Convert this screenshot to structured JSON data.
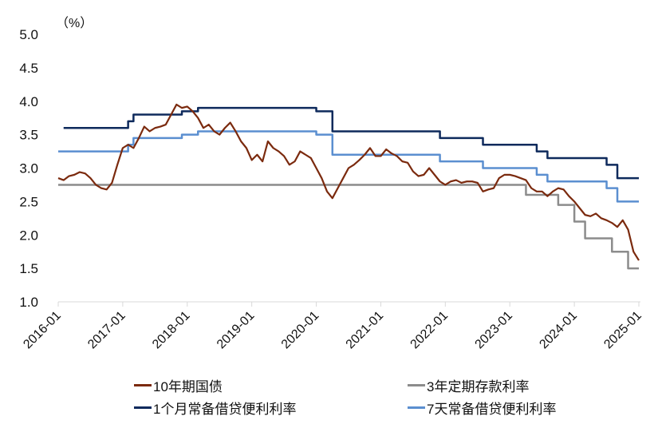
{
  "chart_data": {
    "type": "line",
    "title": "",
    "unit_label": "（%）",
    "xlabel": "",
    "ylabel": "%",
    "ylim": [
      1.0,
      5.0
    ],
    "yticks": [
      "1.0",
      "1.5",
      "2.0",
      "2.5",
      "3.0",
      "3.5",
      "4.0",
      "4.5",
      "5.0"
    ],
    "xticks": [
      "2016-01",
      "2017-01",
      "2018-01",
      "2019-01",
      "2020-01",
      "2021-01",
      "2022-01",
      "2023-01",
      "2024-01",
      "2025-01"
    ],
    "grid": false,
    "legend_position": "bottom",
    "series": [
      {
        "name": "10年期国债",
        "color": "#7B2A0E",
        "style": "line",
        "points": [
          [
            "2016-01",
            2.85
          ],
          [
            "2016-02",
            2.82
          ],
          [
            "2016-03",
            2.88
          ],
          [
            "2016-04",
            2.9
          ],
          [
            "2016-05",
            2.94
          ],
          [
            "2016-06",
            2.92
          ],
          [
            "2016-07",
            2.85
          ],
          [
            "2016-08",
            2.75
          ],
          [
            "2016-09",
            2.7
          ],
          [
            "2016-10",
            2.68
          ],
          [
            "2016-11",
            2.78
          ],
          [
            "2016-12",
            3.05
          ],
          [
            "2017-01",
            3.3
          ],
          [
            "2017-02",
            3.35
          ],
          [
            "2017-03",
            3.3
          ],
          [
            "2017-04",
            3.45
          ],
          [
            "2017-05",
            3.62
          ],
          [
            "2017-06",
            3.55
          ],
          [
            "2017-07",
            3.6
          ],
          [
            "2017-08",
            3.62
          ],
          [
            "2017-09",
            3.65
          ],
          [
            "2017-10",
            3.8
          ],
          [
            "2017-11",
            3.95
          ],
          [
            "2017-12",
            3.9
          ],
          [
            "2018-01",
            3.92
          ],
          [
            "2018-02",
            3.85
          ],
          [
            "2018-03",
            3.75
          ],
          [
            "2018-04",
            3.6
          ],
          [
            "2018-05",
            3.65
          ],
          [
            "2018-06",
            3.55
          ],
          [
            "2018-07",
            3.5
          ],
          [
            "2018-08",
            3.6
          ],
          [
            "2018-09",
            3.68
          ],
          [
            "2018-10",
            3.55
          ],
          [
            "2018-11",
            3.4
          ],
          [
            "2018-12",
            3.3
          ],
          [
            "2019-01",
            3.12
          ],
          [
            "2019-02",
            3.2
          ],
          [
            "2019-03",
            3.1
          ],
          [
            "2019-04",
            3.4
          ],
          [
            "2019-05",
            3.3
          ],
          [
            "2019-06",
            3.25
          ],
          [
            "2019-07",
            3.18
          ],
          [
            "2019-08",
            3.05
          ],
          [
            "2019-09",
            3.1
          ],
          [
            "2019-10",
            3.25
          ],
          [
            "2019-11",
            3.2
          ],
          [
            "2019-12",
            3.15
          ],
          [
            "2020-01",
            3.0
          ],
          [
            "2020-02",
            2.85
          ],
          [
            "2020-03",
            2.65
          ],
          [
            "2020-04",
            2.55
          ],
          [
            "2020-05",
            2.7
          ],
          [
            "2020-06",
            2.85
          ],
          [
            "2020-07",
            3.0
          ],
          [
            "2020-08",
            3.05
          ],
          [
            "2020-09",
            3.12
          ],
          [
            "2020-10",
            3.2
          ],
          [
            "2020-11",
            3.3
          ],
          [
            "2020-12",
            3.18
          ],
          [
            "2021-01",
            3.18
          ],
          [
            "2021-02",
            3.28
          ],
          [
            "2021-03",
            3.22
          ],
          [
            "2021-04",
            3.18
          ],
          [
            "2021-05",
            3.1
          ],
          [
            "2021-06",
            3.08
          ],
          [
            "2021-07",
            2.95
          ],
          [
            "2021-08",
            2.88
          ],
          [
            "2021-09",
            2.9
          ],
          [
            "2021-10",
            3.0
          ],
          [
            "2021-11",
            2.9
          ],
          [
            "2021-12",
            2.8
          ],
          [
            "2022-01",
            2.75
          ],
          [
            "2022-02",
            2.8
          ],
          [
            "2022-03",
            2.82
          ],
          [
            "2022-04",
            2.78
          ],
          [
            "2022-05",
            2.8
          ],
          [
            "2022-06",
            2.8
          ],
          [
            "2022-07",
            2.78
          ],
          [
            "2022-08",
            2.65
          ],
          [
            "2022-09",
            2.68
          ],
          [
            "2022-10",
            2.7
          ],
          [
            "2022-11",
            2.85
          ],
          [
            "2022-12",
            2.9
          ],
          [
            "2023-01",
            2.9
          ],
          [
            "2023-02",
            2.88
          ],
          [
            "2023-03",
            2.85
          ],
          [
            "2023-04",
            2.82
          ],
          [
            "2023-05",
            2.7
          ],
          [
            "2023-06",
            2.65
          ],
          [
            "2023-07",
            2.65
          ],
          [
            "2023-08",
            2.58
          ],
          [
            "2023-09",
            2.65
          ],
          [
            "2023-10",
            2.7
          ],
          [
            "2023-11",
            2.68
          ],
          [
            "2023-12",
            2.58
          ],
          [
            "2024-01",
            2.5
          ],
          [
            "2024-02",
            2.4
          ],
          [
            "2024-03",
            2.3
          ],
          [
            "2024-04",
            2.28
          ],
          [
            "2024-05",
            2.32
          ],
          [
            "2024-06",
            2.25
          ],
          [
            "2024-07",
            2.22
          ],
          [
            "2024-08",
            2.18
          ],
          [
            "2024-09",
            2.12
          ],
          [
            "2024-10",
            2.22
          ],
          [
            "2024-11",
            2.08
          ],
          [
            "2024-12",
            1.75
          ],
          [
            "2025-01",
            1.62
          ]
        ]
      },
      {
        "name": "3年定期存款利率",
        "color": "#8C8C8C",
        "style": "step",
        "points": [
          [
            "2016-01",
            2.75
          ],
          [
            "2023-04",
            2.6
          ],
          [
            "2023-10",
            2.45
          ],
          [
            "2024-01",
            2.2
          ],
          [
            "2024-03",
            1.95
          ],
          [
            "2024-08",
            1.75
          ],
          [
            "2024-11",
            1.5
          ],
          [
            "2025-01",
            1.5
          ]
        ]
      },
      {
        "name": "1个月常备借贷便利利率",
        "color": "#0E2A5C",
        "style": "step",
        "points": [
          [
            "2016-02",
            3.6
          ],
          [
            "2017-02",
            3.7
          ],
          [
            "2017-03",
            3.8
          ],
          [
            "2017-12",
            3.85
          ],
          [
            "2018-03",
            3.9
          ],
          [
            "2020-01",
            3.85
          ],
          [
            "2020-04",
            3.55
          ],
          [
            "2021-12",
            3.45
          ],
          [
            "2022-08",
            3.35
          ],
          [
            "2023-06",
            3.25
          ],
          [
            "2023-08",
            3.15
          ],
          [
            "2024-07",
            3.05
          ],
          [
            "2024-09",
            2.85
          ],
          [
            "2025-01",
            2.85
          ]
        ]
      },
      {
        "name": "7天常备借贷便利利率",
        "color": "#5B8FD0",
        "style": "step",
        "points": [
          [
            "2016-01",
            3.25
          ],
          [
            "2017-02",
            3.35
          ],
          [
            "2017-03",
            3.45
          ],
          [
            "2017-12",
            3.5
          ],
          [
            "2018-03",
            3.55
          ],
          [
            "2020-01",
            3.5
          ],
          [
            "2020-04",
            3.2
          ],
          [
            "2021-12",
            3.1
          ],
          [
            "2022-08",
            3.0
          ],
          [
            "2023-06",
            2.9
          ],
          [
            "2023-08",
            2.8
          ],
          [
            "2024-07",
            2.7
          ],
          [
            "2024-09",
            2.5
          ],
          [
            "2025-01",
            2.5
          ]
        ]
      }
    ]
  },
  "legend": {
    "items": [
      {
        "label": "10年期国债",
        "color": "#7B2A0E"
      },
      {
        "label": "3年定期存款利率",
        "color": "#8C8C8C"
      },
      {
        "label": "1个月常备借贷便利利率",
        "color": "#0E2A5C"
      },
      {
        "label": "7天常备借贷便利利率",
        "color": "#5B8FD0"
      }
    ]
  }
}
